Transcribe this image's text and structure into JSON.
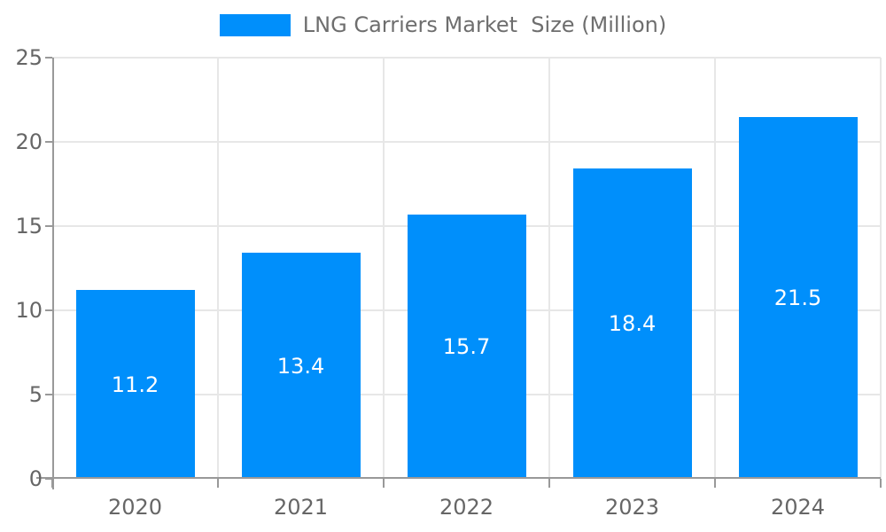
{
  "chart_data": {
    "type": "bar",
    "title": "LNG Carriers Market  Size (Million)",
    "legend": {
      "label": "LNG Carriers Market  Size (Million)",
      "position": "top-center",
      "swatch_color": "#008FFB"
    },
    "categories": [
      "2020",
      "2021",
      "2022",
      "2023",
      "2024"
    ],
    "values": [
      11.2,
      13.4,
      15.7,
      18.4,
      21.5
    ],
    "data_labels": [
      "11.2",
      "13.4",
      "15.7",
      "18.4",
      "21.5"
    ],
    "xlabel": "",
    "ylabel": "",
    "ylim": [
      0,
      25
    ],
    "yticks": [
      0,
      5,
      10,
      15,
      20,
      25
    ],
    "grid": "on",
    "colors": {
      "bar": "#008FFB",
      "grid": "#e7e7e7",
      "axis": "#999999",
      "tick_label": "#666666",
      "legend_text": "#6e6e6e",
      "data_label": "#ffffff"
    }
  }
}
